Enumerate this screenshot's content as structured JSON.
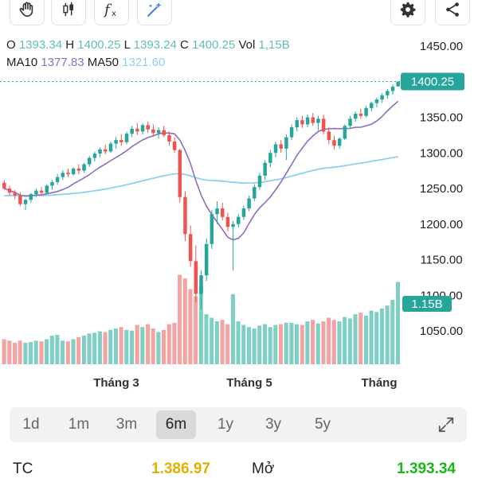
{
  "toolbar": {
    "icons": [
      "hand-icon",
      "candlestick-icon",
      "function-icon",
      "magic-icon",
      "gear-icon",
      "share-icon"
    ]
  },
  "ohlc": {
    "o_label": "O",
    "o_value": "1393.34",
    "h_label": "H",
    "h_value": "1400.25",
    "l_label": "L",
    "l_value": "1393.24",
    "c_label": "C",
    "c_value": "1400.25",
    "vol_label": "Vol",
    "vol_value": "1,15B"
  },
  "ma": {
    "ma10_label": "MA10",
    "ma10_value": "1377.83",
    "ma50_label": "MA50",
    "ma50_value": "1321.60"
  },
  "chart_data": {
    "type": "candlestick",
    "price_axis": [
      "1450.00",
      "1400.00",
      "1350.00",
      "1300.00",
      "1250.00",
      "1200.00",
      "1150.00",
      "1100.00",
      "1050.00"
    ],
    "price_range": [
      1035,
      1465
    ],
    "last_price": "1400.25",
    "volume_badge": "1.15B",
    "x_labels": [
      "Tháng 3",
      "Tháng 5",
      "Tháng"
    ],
    "colors": {
      "up": "#26a69a",
      "down": "#ef5350",
      "ma10": "#8a6ec2",
      "ma50": "#8fd0f0",
      "vol_up": "#7fcfc4",
      "vol_down": "#f3a3a1"
    },
    "candles": [
      [
        1258,
        1262,
        1248,
        1250
      ],
      [
        1250,
        1254,
        1240,
        1244
      ],
      [
        1244,
        1248,
        1235,
        1240
      ],
      [
        1240,
        1245,
        1225,
        1228
      ],
      [
        1228,
        1236,
        1220,
        1234
      ],
      [
        1234,
        1244,
        1230,
        1242
      ],
      [
        1242,
        1250,
        1238,
        1247
      ],
      [
        1247,
        1252,
        1240,
        1244
      ],
      [
        1244,
        1256,
        1242,
        1254
      ],
      [
        1254,
        1262,
        1248,
        1259
      ],
      [
        1259,
        1270,
        1255,
        1266
      ],
      [
        1266,
        1276,
        1262,
        1272
      ],
      [
        1272,
        1278,
        1266,
        1270
      ],
      [
        1270,
        1280,
        1268,
        1278
      ],
      [
        1278,
        1284,
        1270,
        1275
      ],
      [
        1275,
        1286,
        1272,
        1284
      ],
      [
        1284,
        1296,
        1280,
        1293
      ],
      [
        1293,
        1302,
        1288,
        1299
      ],
      [
        1299,
        1308,
        1294,
        1305
      ],
      [
        1305,
        1312,
        1298,
        1302
      ],
      [
        1302,
        1316,
        1300,
        1313
      ],
      [
        1313,
        1322,
        1306,
        1318
      ],
      [
        1318,
        1326,
        1310,
        1315
      ],
      [
        1315,
        1330,
        1312,
        1327
      ],
      [
        1327,
        1338,
        1322,
        1334
      ],
      [
        1334,
        1342,
        1325,
        1330
      ],
      [
        1330,
        1342,
        1326,
        1339
      ],
      [
        1339,
        1344,
        1328,
        1333
      ],
      [
        1333,
        1340,
        1324,
        1328
      ],
      [
        1328,
        1336,
        1320,
        1332
      ],
      [
        1332,
        1338,
        1322,
        1325
      ],
      [
        1325,
        1330,
        1310,
        1316
      ],
      [
        1316,
        1322,
        1300,
        1304
      ],
      [
        1304,
        1306,
        1230,
        1238
      ],
      [
        1238,
        1246,
        1176,
        1186
      ],
      [
        1186,
        1198,
        1140,
        1148
      ],
      [
        1148,
        1170,
        1090,
        1102
      ],
      [
        1102,
        1135,
        1080,
        1128
      ],
      [
        1128,
        1180,
        1120,
        1172
      ],
      [
        1172,
        1220,
        1165,
        1214
      ],
      [
        1214,
        1232,
        1200,
        1222
      ],
      [
        1222,
        1230,
        1205,
        1210
      ],
      [
        1210,
        1216,
        1190,
        1196
      ],
      [
        1196,
        1204,
        1135,
        1200
      ],
      [
        1200,
        1214,
        1195,
        1210
      ],
      [
        1210,
        1226,
        1206,
        1222
      ],
      [
        1222,
        1240,
        1218,
        1236
      ],
      [
        1236,
        1256,
        1232,
        1252
      ],
      [
        1252,
        1272,
        1248,
        1268
      ],
      [
        1268,
        1290,
        1262,
        1286
      ],
      [
        1286,
        1304,
        1280,
        1300
      ],
      [
        1300,
        1316,
        1294,
        1312
      ],
      [
        1312,
        1318,
        1300,
        1306
      ],
      [
        1306,
        1326,
        1290,
        1322
      ],
      [
        1322,
        1340,
        1318,
        1336
      ],
      [
        1336,
        1350,
        1330,
        1346
      ],
      [
        1346,
        1352,
        1335,
        1340
      ],
      [
        1340,
        1354,
        1336,
        1350
      ],
      [
        1350,
        1356,
        1338,
        1342
      ],
      [
        1342,
        1352,
        1332,
        1348
      ],
      [
        1348,
        1354,
        1326,
        1330
      ],
      [
        1330,
        1336,
        1312,
        1318
      ],
      [
        1318,
        1324,
        1305,
        1310
      ],
      [
        1310,
        1322,
        1306,
        1320
      ],
      [
        1320,
        1340,
        1318,
        1338
      ],
      [
        1338,
        1352,
        1334,
        1348
      ],
      [
        1348,
        1358,
        1344,
        1355
      ],
      [
        1355,
        1362,
        1348,
        1352
      ],
      [
        1352,
        1366,
        1350,
        1363
      ],
      [
        1363,
        1372,
        1358,
        1370
      ],
      [
        1370,
        1378,
        1364,
        1375
      ],
      [
        1375,
        1384,
        1370,
        1381
      ],
      [
        1381,
        1390,
        1376,
        1387
      ],
      [
        1387,
        1396,
        1382,
        1393
      ],
      [
        1393.34,
        1400.25,
        1393.24,
        1400.25
      ]
    ],
    "volumes": [
      0.35,
      0.33,
      0.3,
      0.33,
      0.3,
      0.31,
      0.33,
      0.32,
      0.35,
      0.4,
      0.41,
      0.33,
      0.32,
      0.35,
      0.38,
      0.4,
      0.43,
      0.44,
      0.46,
      0.45,
      0.48,
      0.5,
      0.52,
      0.48,
      0.47,
      0.55,
      0.52,
      0.56,
      0.5,
      0.45,
      0.48,
      0.56,
      0.58,
      1.25,
      1.2,
      1.05,
      0.95,
      1.08,
      0.7,
      0.65,
      0.6,
      0.62,
      0.56,
      0.98,
      0.6,
      0.55,
      0.52,
      0.5,
      0.54,
      0.56,
      0.52,
      0.55,
      0.56,
      0.58,
      0.58,
      0.56,
      0.55,
      0.6,
      0.62,
      0.57,
      0.6,
      0.65,
      0.62,
      0.6,
      0.66,
      0.64,
      0.7,
      0.72,
      0.68,
      0.75,
      0.73,
      0.78,
      0.82,
      0.9,
      1.15
    ]
  },
  "ranges": [
    "1d",
    "1m",
    "3m",
    "6m",
    "1y",
    "3y",
    "5y"
  ],
  "active_range": "6m",
  "footer": {
    "tc_label": "TC",
    "tc_value": "1.386.97",
    "open_label": "Mở",
    "open_value": "1.393.34"
  }
}
